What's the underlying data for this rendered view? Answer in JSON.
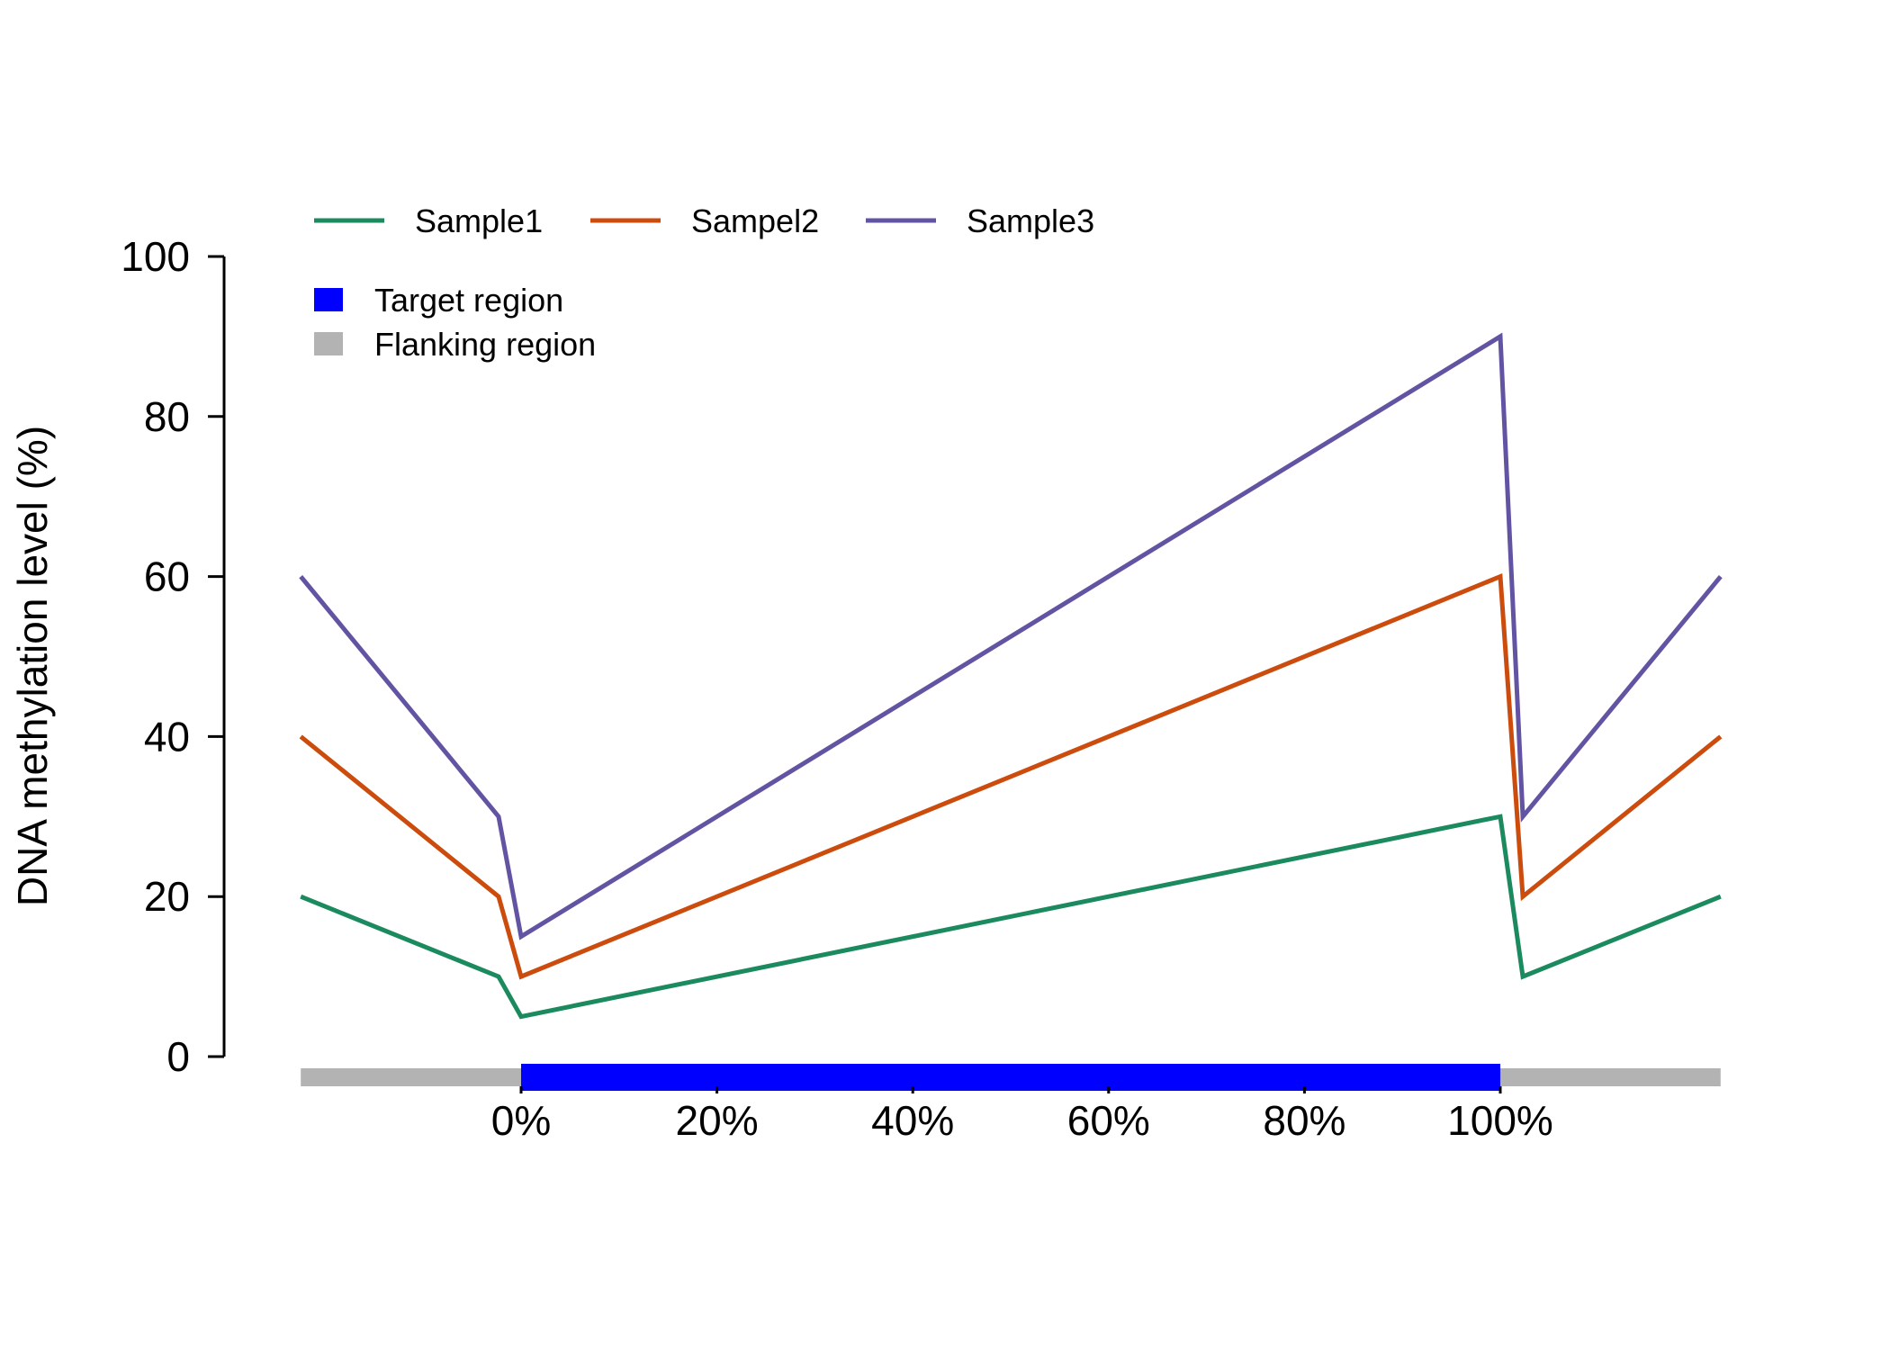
{
  "chart_data": {
    "type": "line",
    "title": "",
    "xlabel": "",
    "ylabel": "DNA methylation level (%)",
    "ylim": [
      0,
      100
    ],
    "yticks": [
      0,
      20,
      40,
      60,
      80,
      100
    ],
    "xlim": [
      -22.5,
      122.5
    ],
    "xticks": [
      0,
      20,
      40,
      60,
      80,
      100
    ],
    "xtick_labels": [
      "0%",
      "20%",
      "40%",
      "60%",
      "80%",
      "100%"
    ],
    "x": [
      -22.5,
      -2.3,
      0,
      100,
      102.3,
      122.5
    ],
    "series": [
      {
        "name": "Sample1",
        "color": "#1b8a5e",
        "values": [
          20,
          10,
          5,
          30,
          10,
          20
        ]
      },
      {
        "name": "Sampel2",
        "color": "#cc4c0e",
        "values": [
          40,
          20,
          10,
          60,
          20,
          40
        ]
      },
      {
        "name": "Sample3",
        "color": "#6354a3",
        "values": [
          60,
          30,
          15,
          90,
          30,
          60
        ]
      }
    ],
    "regions": [
      {
        "name": "Flanking region",
        "color": "#b3b3b3",
        "start": -22.5,
        "end": 122.5
      },
      {
        "name": "Target region",
        "color": "#0000ff",
        "start": 0,
        "end": 100
      }
    ],
    "legend_series_placement": "top-left",
    "legend_regions_placement": "top-left",
    "grid": false
  }
}
